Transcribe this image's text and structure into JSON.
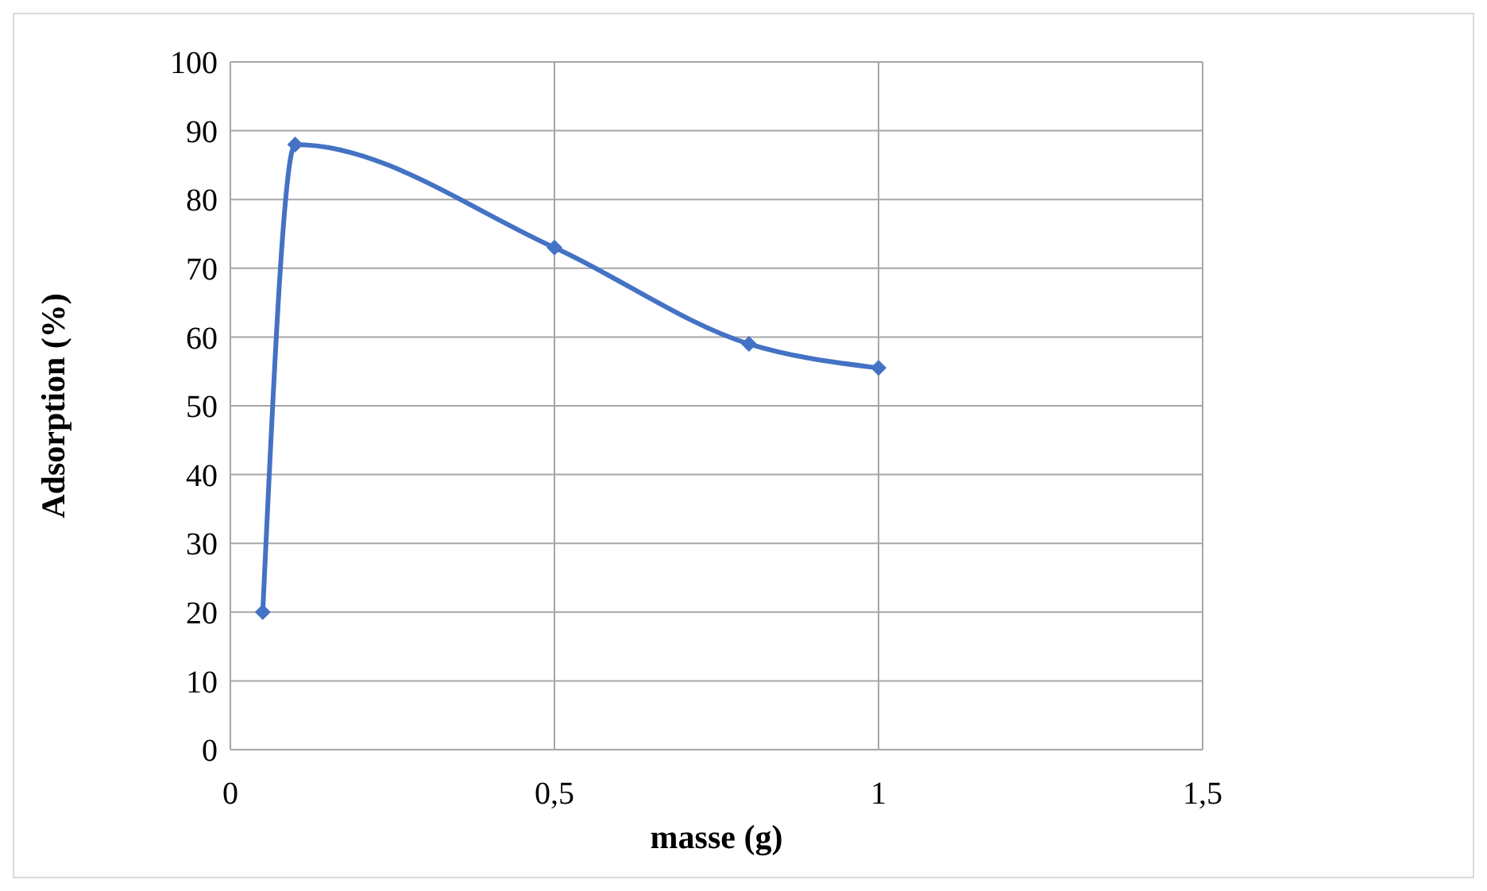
{
  "chart_data": {
    "type": "line",
    "xlabel": "masse (g)",
    "ylabel": "Adsorption (%)",
    "x": [
      0.05,
      0.1,
      0.5,
      0.8,
      1
    ],
    "series": [
      {
        "color": "#4472c4",
        "values": [
          20,
          88,
          73,
          59,
          55.5
        ]
      }
    ],
    "xlim": [
      0,
      1.5
    ],
    "xticks": [
      0,
      {
        "value": 0.5,
        "label": "0,5"
      },
      1,
      {
        "value": 1.5,
        "label": "1,5"
      }
    ],
    "ylim": [
      0,
      100
    ],
    "yticks": [
      0,
      10,
      20,
      30,
      40,
      50,
      60,
      70,
      80,
      90,
      100
    ],
    "grid": true,
    "marker": "diamond",
    "line_style": "solid",
    "legend": false
  }
}
